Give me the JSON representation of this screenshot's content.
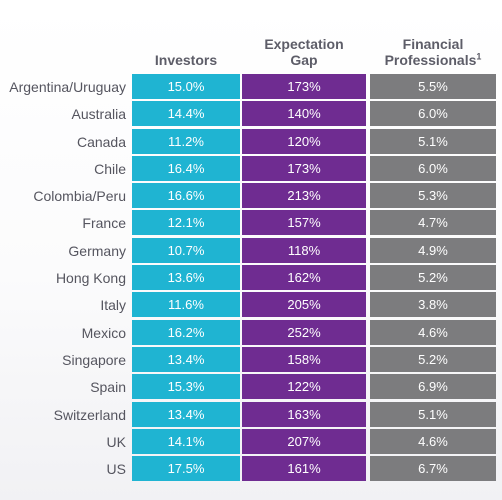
{
  "chart_data": {
    "type": "table",
    "columns": [
      {
        "key": "investors",
        "label_lines": [
          "Investors"
        ],
        "color": "#1fb4d2"
      },
      {
        "key": "expectation_gap",
        "label_lines": [
          "Expectation",
          "Gap"
        ],
        "color": "#6f2c91"
      },
      {
        "key": "financial_professionals",
        "label_lines": [
          "Financial",
          "Professionals"
        ],
        "footnote": "1",
        "color": "#7c7c7e"
      }
    ],
    "rows": [
      {
        "country": "Argentina/Uruguay",
        "investors": "15.0%",
        "expectation_gap": "173%",
        "financial_professionals": "5.5%"
      },
      {
        "country": "Australia",
        "investors": "14.4%",
        "expectation_gap": "140%",
        "financial_professionals": "6.0%"
      },
      {
        "country": "Canada",
        "investors": "11.2%",
        "expectation_gap": "120%",
        "financial_professionals": "5.1%"
      },
      {
        "country": "Chile",
        "investors": "16.4%",
        "expectation_gap": "173%",
        "financial_professionals": "6.0%"
      },
      {
        "country": "Colombia/Peru",
        "investors": "16.6%",
        "expectation_gap": "213%",
        "financial_professionals": "5.3%"
      },
      {
        "country": "France",
        "investors": "12.1%",
        "expectation_gap": "157%",
        "financial_professionals": "4.7%"
      },
      {
        "country": "Germany",
        "investors": "10.7%",
        "expectation_gap": "118%",
        "financial_professionals": "4.9%"
      },
      {
        "country": "Hong Kong",
        "investors": "13.6%",
        "expectation_gap": "162%",
        "financial_professionals": "5.2%"
      },
      {
        "country": "Italy",
        "investors": "11.6%",
        "expectation_gap": "205%",
        "financial_professionals": "3.8%"
      },
      {
        "country": "Mexico",
        "investors": "16.2%",
        "expectation_gap": "252%",
        "financial_professionals": "4.6%"
      },
      {
        "country": "Singapore",
        "investors": "13.4%",
        "expectation_gap": "158%",
        "financial_professionals": "5.2%"
      },
      {
        "country": "Spain",
        "investors": "15.3%",
        "expectation_gap": "122%",
        "financial_professionals": "6.9%"
      },
      {
        "country": "Switzerland",
        "investors": "13.4%",
        "expectation_gap": "163%",
        "financial_professionals": "5.1%"
      },
      {
        "country": "UK",
        "investors": "14.1%",
        "expectation_gap": "207%",
        "financial_professionals": "4.6%"
      },
      {
        "country": "US",
        "investors": "17.5%",
        "expectation_gap": "161%",
        "financial_professionals": "6.7%"
      }
    ]
  }
}
